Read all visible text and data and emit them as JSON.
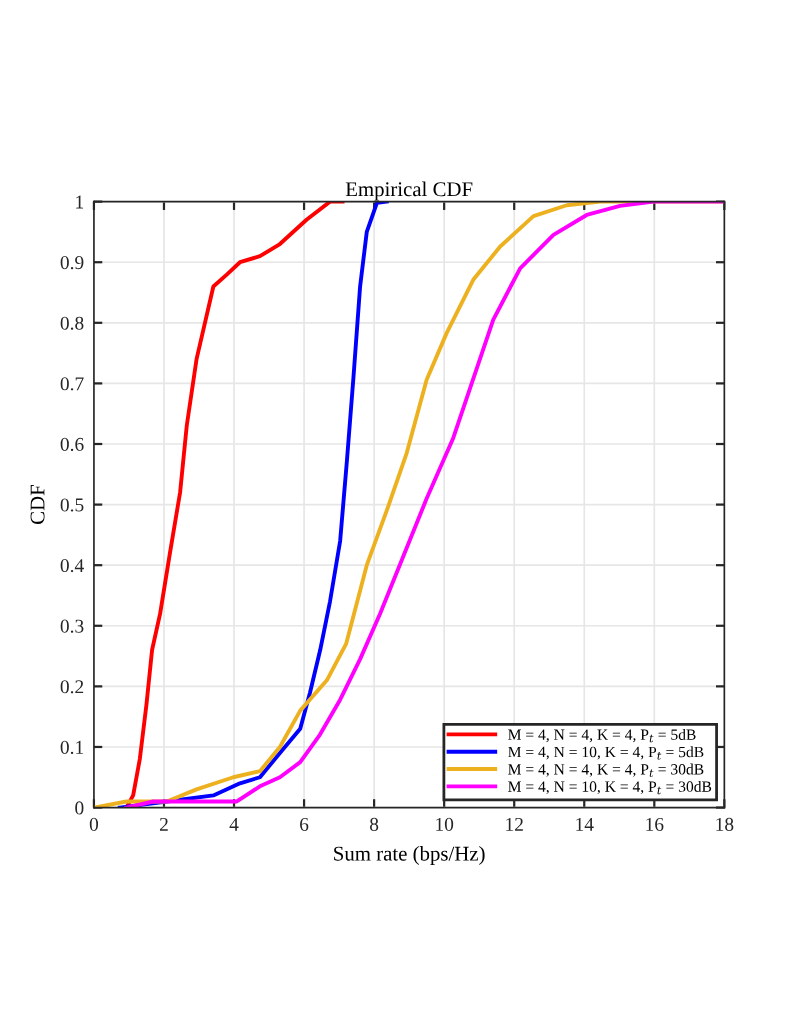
{
  "chart_data": {
    "type": "line",
    "title": "Empirical CDF",
    "xlabel": "Sum rate (bps/Hz)",
    "ylabel": "CDF",
    "xlim": [
      0,
      18
    ],
    "xticks": [
      0,
      2,
      4,
      6,
      8,
      10,
      12,
      14,
      16,
      18
    ],
    "ylim": [
      0,
      1
    ],
    "yticks": [
      0,
      0.1,
      0.2,
      0.3,
      0.4,
      0.5,
      0.6,
      0.7,
      0.8,
      0.9,
      1
    ],
    "grid": true,
    "legend": "bottom right",
    "marker": "none",
    "line_style": "solid",
    "series": [
      {
        "name": "M = 4, N = 4, K = 4, P$_{t}$ = 5dB",
        "color": "#ff0000",
        "x": [
          0.93,
          1.12,
          1.31,
          1.5,
          1.66,
          1.89,
          2.17,
          2.46,
          2.65,
          2.93,
          3.41,
          3.8,
          4.17,
          4.74,
          5.31,
          6.07,
          6.74,
          7.1
        ],
        "values": [
          0,
          0.02,
          0.08,
          0.17,
          0.26,
          0.32,
          0.42,
          0.52,
          0.63,
          0.74,
          0.86,
          0.88,
          0.9,
          0.91,
          0.93,
          0.97,
          1.0,
          1.0
        ]
      },
      {
        "name": "M = 4, N = 10, K = 4, P$_{t}$ = 5dB",
        "color": "#0000ff",
        "x": [
          0.74,
          2.08,
          3.41,
          4.17,
          4.74,
          5.31,
          5.89,
          6.17,
          6.46,
          6.74,
          7.03,
          7.22,
          7.41,
          7.6,
          7.79,
          8.08,
          8.36
        ],
        "values": [
          0,
          0.01,
          0.02,
          0.04,
          0.05,
          0.09,
          0.13,
          0.19,
          0.26,
          0.34,
          0.44,
          0.57,
          0.71,
          0.86,
          0.95,
          0.998,
          1.0
        ]
      },
      {
        "name": "M = 4, N = 4, K = 4, P$_{t}$ = 30dB",
        "color": "#edb120",
        "x": [
          0,
          0.93,
          2.08,
          2.93,
          3.98,
          4.74,
          5.31,
          5.89,
          6.65,
          7.2,
          7.79,
          8.36,
          8.93,
          9.5,
          10.07,
          10.83,
          11.6,
          12.55,
          13.5,
          14.45,
          18
        ],
        "values": [
          0,
          0.01,
          0.01,
          0.03,
          0.05,
          0.06,
          0.1,
          0.16,
          0.21,
          0.27,
          0.4,
          0.49,
          0.585,
          0.706,
          0.783,
          0.871,
          0.926,
          0.976,
          0.994,
          1.0,
          1.0
        ]
      },
      {
        "name": "M = 4, N = 10, K = 4, P$_{t}$ = 30dB",
        "color": "#ff00ff",
        "x": [
          0.93,
          1.69,
          3.41,
          4.08,
          4.74,
          5.31,
          5.89,
          6.45,
          7.03,
          7.6,
          8.17,
          9.5,
          10.26,
          11.4,
          12.17,
          13.12,
          14.07,
          15.02,
          15.98,
          18
        ],
        "values": [
          0,
          0.01,
          0.01,
          0.01,
          0.035,
          0.05,
          0.075,
          0.12,
          0.178,
          0.245,
          0.32,
          0.51,
          0.61,
          0.805,
          0.89,
          0.945,
          0.978,
          0.993,
          1.0,
          1.0
        ]
      }
    ]
  }
}
